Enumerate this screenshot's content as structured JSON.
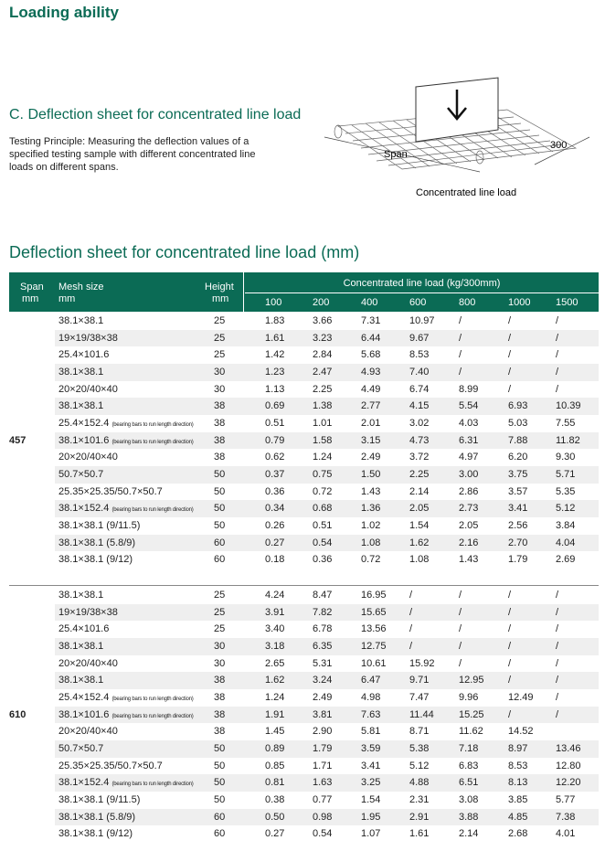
{
  "header": {
    "title": "Loading ability"
  },
  "intro": {
    "heading": "C. Deflection sheet for concentrated line load",
    "text": "Testing Principle: Measuring the deflection values of a specified testing sample with different concentrated line loads on different spans."
  },
  "diagram": {
    "span": "Span",
    "width": "300",
    "caption": "Concentrated line load"
  },
  "table": {
    "title": "Deflection sheet for concentrated line load (mm)",
    "header": {
      "span": "Span",
      "span_unit": "mm",
      "mesh": "Mesh size",
      "mesh_unit": "mm",
      "height": "Height",
      "height_unit": "mm",
      "load": "Concentrated line load (kg/300mm)",
      "loads": [
        "100",
        "200",
        "400",
        "600",
        "800",
        "1000",
        "1500"
      ]
    },
    "groups": [
      {
        "span": "457",
        "rows": [
          {
            "mesh": "38.1×38.1",
            "height": "25",
            "values": [
              "1.83",
              "3.66",
              "7.31",
              "10.97",
              "/",
              "/",
              "/"
            ]
          },
          {
            "mesh": "19×19/38×38",
            "height": "25",
            "values": [
              "1.61",
              "3.23",
              "6.44",
              "9.67",
              "/",
              "/",
              "/"
            ]
          },
          {
            "mesh": "25.4×101.6",
            "height": "25",
            "values": [
              "1.42",
              "2.84",
              "5.68",
              "8.53",
              "/",
              "/",
              "/"
            ]
          },
          {
            "mesh": "38.1×38.1",
            "height": "30",
            "values": [
              "1.23",
              "2.47",
              "4.93",
              "7.40",
              "/",
              "/",
              "/"
            ]
          },
          {
            "mesh": "20×20/40×40",
            "height": "30",
            "values": [
              "1.13",
              "2.25",
              "4.49",
              "6.74",
              "8.99",
              "/",
              "/"
            ]
          },
          {
            "mesh": "38.1×38.1",
            "height": "38",
            "values": [
              "0.69",
              "1.38",
              "2.77",
              "4.15",
              "5.54",
              "6.93",
              "10.39"
            ]
          },
          {
            "mesh": "25.4×152.4",
            "note": "(bearing bars to run length direction)",
            "height": "38",
            "values": [
              "0.51",
              "1.01",
              "2.01",
              "3.02",
              "4.03",
              "5.03",
              "7.55"
            ]
          },
          {
            "mesh": "38.1×101.6",
            "note": "(bearing bars to run length direction)",
            "height": "38",
            "values": [
              "0.79",
              "1.58",
              "3.15",
              "4.73",
              "6.31",
              "7.88",
              "11.82"
            ]
          },
          {
            "mesh": "20×20/40×40",
            "height": "38",
            "values": [
              "0.62",
              "1.24",
              "2.49",
              "3.72",
              "4.97",
              "6.20",
              "9.30"
            ]
          },
          {
            "mesh": "50.7×50.7",
            "height": "50",
            "values": [
              "0.37",
              "0.75",
              "1.50",
              "2.25",
              "3.00",
              "3.75",
              "5.71"
            ]
          },
          {
            "mesh": "25.35×25.35/50.7×50.7",
            "height": "50",
            "values": [
              "0.36",
              "0.72",
              "1.43",
              "2.14",
              "2.86",
              "3.57",
              "5.35"
            ]
          },
          {
            "mesh": "38.1×152.4",
            "note": "(bearing bars to run length direction)",
            "height": "50",
            "values": [
              "0.34",
              "0.68",
              "1.36",
              "2.05",
              "2.73",
              "3.41",
              "5.12"
            ]
          },
          {
            "mesh": "38.1×38.1 (9/11.5)",
            "height": "50",
            "values": [
              "0.26",
              "0.51",
              "1.02",
              "1.54",
              "2.05",
              "2.56",
              "3.84"
            ]
          },
          {
            "mesh": "38.1×38.1 (5.8/9)",
            "height": "60",
            "values": [
              "0.27",
              "0.54",
              "1.08",
              "1.62",
              "2.16",
              "2.70",
              "4.04"
            ]
          },
          {
            "mesh": "38.1×38.1 (9/12)",
            "height": "60",
            "values": [
              "0.18",
              "0.36",
              "0.72",
              "1.08",
              "1.43",
              "1.79",
              "2.69"
            ]
          }
        ]
      },
      {
        "span": "610",
        "rows": [
          {
            "mesh": "38.1×38.1",
            "height": "25",
            "values": [
              "4.24",
              "8.47",
              "16.95",
              "/",
              "/",
              "/",
              "/"
            ]
          },
          {
            "mesh": "19×19/38×38",
            "height": "25",
            "values": [
              "3.91",
              "7.82",
              "15.65",
              "/",
              "/",
              "/",
              "/"
            ]
          },
          {
            "mesh": "25.4×101.6",
            "height": "25",
            "values": [
              "3.40",
              "6.78",
              "13.56",
              "/",
              "/",
              "/",
              "/"
            ]
          },
          {
            "mesh": "38.1×38.1",
            "height": "30",
            "values": [
              "3.18",
              "6.35",
              "12.75",
              "/",
              "/",
              "/",
              "/"
            ]
          },
          {
            "mesh": "20×20/40×40",
            "height": "30",
            "values": [
              "2.65",
              "5.31",
              "10.61",
              "15.92",
              "/",
              "/",
              "/"
            ]
          },
          {
            "mesh": "38.1×38.1",
            "height": "38",
            "values": [
              "1.62",
              "3.24",
              "6.47",
              "9.71",
              "12.95",
              "/",
              "/"
            ]
          },
          {
            "mesh": "25.4×152.4",
            "note": "(bearing bars to run length direction)",
            "height": "38",
            "values": [
              "1.24",
              "2.49",
              "4.98",
              "7.47",
              "9.96",
              "12.49",
              "/"
            ]
          },
          {
            "mesh": "38.1×101.6",
            "note": "(bearing bars to run length direction)",
            "height": "38",
            "values": [
              "1.91",
              "3.81",
              "7.63",
              "11.44",
              "15.25",
              "/",
              "/"
            ]
          },
          {
            "mesh": "20×20/40×40",
            "height": "38",
            "values": [
              "1.45",
              "2.90",
              "5.81",
              "8.71",
              "11.62",
              "14.52",
              null
            ]
          },
          {
            "mesh": "50.7×50.7",
            "height": "50",
            "values": [
              "0.89",
              "1.79",
              "3.59",
              "5.38",
              "7.18",
              "8.97",
              "13.46"
            ]
          },
          {
            "mesh": "25.35×25.35/50.7×50.7",
            "height": "50",
            "values": [
              "0.85",
              "1.71",
              "3.41",
              "5.12",
              "6.83",
              "8.53",
              "12.80"
            ]
          },
          {
            "mesh": "38.1×152.4",
            "note": "(bearing bars to run length direction)",
            "height": "50",
            "values": [
              "0.81",
              "1.63",
              "3.25",
              "4.88",
              "6.51",
              "8.13",
              "12.20"
            ]
          },
          {
            "mesh": "38.1×38.1 (9/11.5)",
            "height": "50",
            "values": [
              "0.38",
              "0.77",
              "1.54",
              "2.31",
              "3.08",
              "3.85",
              "5.77"
            ]
          },
          {
            "mesh": "38.1×38.1 (5.8/9)",
            "height": "60",
            "values": [
              "0.50",
              "0.98",
              "1.95",
              "2.91",
              "3.88",
              "4.85",
              "7.38"
            ]
          },
          {
            "mesh": "38.1×38.1 (9/12)",
            "height": "60",
            "values": [
              "0.27",
              "0.54",
              "1.07",
              "1.61",
              "2.14",
              "2.68",
              "4.01"
            ]
          }
        ]
      }
    ]
  }
}
